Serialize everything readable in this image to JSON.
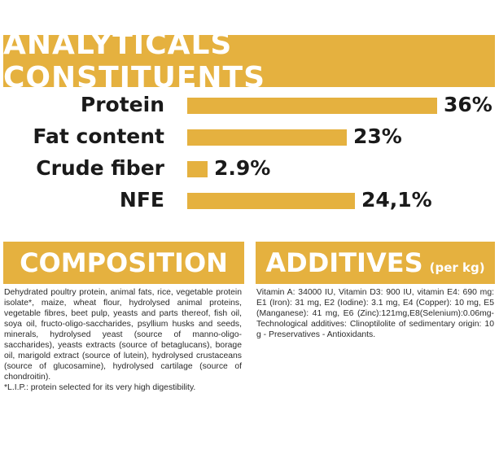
{
  "header": {
    "title": "ANALYTICALS CONSTITUENTS"
  },
  "colors": {
    "accent": "#e5b13f",
    "text": "#1a1a1a",
    "banner_text": "#ffffff"
  },
  "chart_data": {
    "type": "bar",
    "orientation": "horizontal",
    "categories": [
      "Protein",
      "Fat content",
      "Crude fiber",
      "NFE"
    ],
    "values": [
      36,
      23,
      2.9,
      24.1
    ],
    "value_labels": [
      "36%",
      "23%",
      "2.9%",
      "24,1%"
    ],
    "xlim": [
      0,
      36
    ]
  },
  "composition": {
    "title": "COMPOSITION",
    "text": "Dehydrated poultry protein, animal fats, rice, vegetable protein isolate*, maize, wheat flour, hydrolysed animal proteins, vegetable fibres, beet pulp, yeasts and parts thereof, fish oil, soya oil, fructo-oligo-saccharides, psyllium husks and seeds, minerals, hydrolysed yeast (source of manno-oligo-saccharides), yeasts extracts (source of betaglucans), borage oil, marigold extract (source of lutein), hydrolysed crustaceans (source of glucosamine), hydrolysed cartilage (source of chondroitin).",
    "footnote": "*L.I.P.: protein selected for its very high digestibility."
  },
  "additives": {
    "title": "ADDITIVES",
    "subtitle": "(per kg)",
    "text": "Vitamin A: 34000 IU, Vitamin D3: 900 IU, vitamin E4: 690 mg: E1 (Iron): 31 mg, E2 (Iodine): 3.1 mg, E4 (Copper): 10 mg, E5 (Manganese): 41 mg, E6 (Zinc):121mg,E8(Selenium):0.06mg-Technological additives: Clinoptilolite of sedimentary origin: 10 g - Preservatives - Antioxidants."
  }
}
